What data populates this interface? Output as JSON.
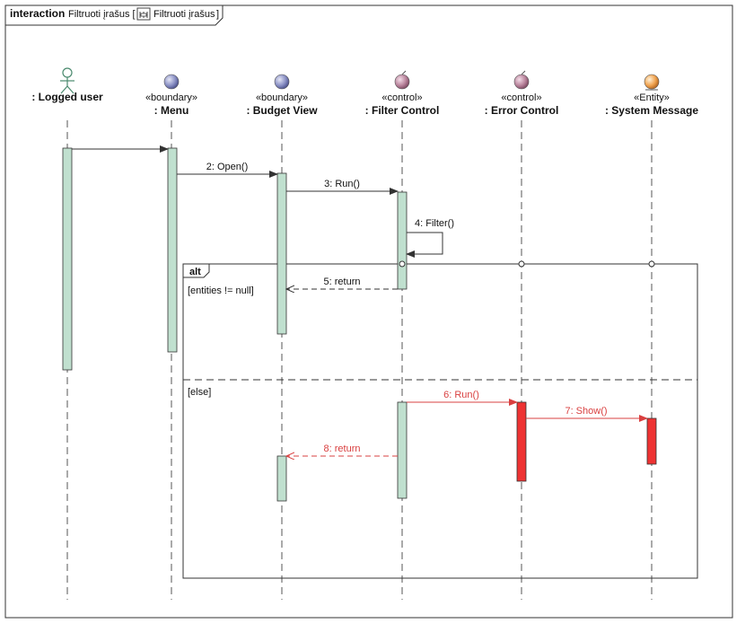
{
  "frame": {
    "keyword": "interaction",
    "name": "Filtruoti įrašus [",
    "ref_name": "Filtruoti įrašus",
    "close": "]"
  },
  "lifelines": [
    {
      "id": "logged-user",
      "stereotype": "",
      "name": ": Logged user",
      "kind": "actor"
    },
    {
      "id": "menu",
      "stereotype": "«boundary»",
      "name": ": Menu",
      "kind": "boundary"
    },
    {
      "id": "budget-view",
      "stereotype": "«boundary»",
      "name": ": Budget View",
      "kind": "boundary"
    },
    {
      "id": "filter-control",
      "stereotype": "«control»",
      "name": ": Filter Control",
      "kind": "control"
    },
    {
      "id": "error-control",
      "stereotype": "«control»",
      "name": ": Error Control",
      "kind": "control"
    },
    {
      "id": "system-message",
      "stereotype": "«Entity»",
      "name": ": System Message",
      "kind": "entity"
    }
  ],
  "messages": [
    {
      "id": "m1",
      "label": "",
      "kind": "sync"
    },
    {
      "id": "m2",
      "label": "2:  Open()",
      "kind": "sync"
    },
    {
      "id": "m3",
      "label": "3:  Run()",
      "kind": "sync"
    },
    {
      "id": "m4",
      "label": "4:  Filter()",
      "kind": "self"
    },
    {
      "id": "m5",
      "label": "5:  return",
      "kind": "return"
    },
    {
      "id": "m6",
      "label": "6:  Run()",
      "kind": "sync"
    },
    {
      "id": "m7",
      "label": "7:  Show()",
      "kind": "sync"
    },
    {
      "id": "m8",
      "label": "8:  return",
      "kind": "return"
    }
  ],
  "fragment": {
    "operator": "alt",
    "guard1": "[entities != null]",
    "guard2": "[else]"
  },
  "colors": {
    "activation_fill": "#c0e0cf",
    "error_fill": "#ee3333",
    "error_line": "#d94040",
    "line": "#333333",
    "lifeline_dash": "#555555"
  }
}
